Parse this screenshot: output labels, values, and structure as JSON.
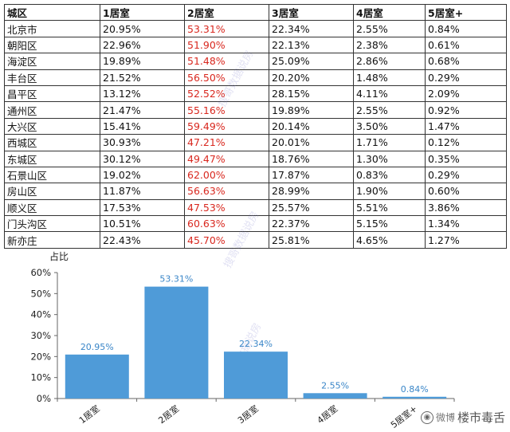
{
  "table": {
    "headers": [
      "城区",
      "1居室",
      "2居室",
      "3居室",
      "4居室",
      "5居室+"
    ],
    "rows": [
      [
        "北京市",
        "20.95%",
        "53.31%",
        "22.34%",
        "2.55%",
        "0.84%"
      ],
      [
        "朝阳区",
        "22.96%",
        "51.90%",
        "22.13%",
        "2.38%",
        "0.61%"
      ],
      [
        "海淀区",
        "19.89%",
        "51.48%",
        "25.09%",
        "2.86%",
        "0.68%"
      ],
      [
        "丰台区",
        "21.52%",
        "56.50%",
        "20.20%",
        "1.48%",
        "0.29%"
      ],
      [
        "昌平区",
        "13.12%",
        "52.52%",
        "28.15%",
        "4.11%",
        "2.09%"
      ],
      [
        "通州区",
        "21.47%",
        "55.16%",
        "19.89%",
        "2.55%",
        "0.92%"
      ],
      [
        "大兴区",
        "15.41%",
        "59.49%",
        "20.14%",
        "3.50%",
        "1.47%"
      ],
      [
        "西城区",
        "30.93%",
        "47.21%",
        "20.01%",
        "1.71%",
        "0.12%"
      ],
      [
        "东城区",
        "30.12%",
        "49.47%",
        "18.76%",
        "1.30%",
        "0.35%"
      ],
      [
        "石景山区",
        "19.02%",
        "62.00%",
        "17.87%",
        "0.83%",
        "0.29%"
      ],
      [
        "房山区",
        "11.87%",
        "56.63%",
        "28.99%",
        "1.90%",
        "0.60%"
      ],
      [
        "顺义区",
        "17.53%",
        "47.53%",
        "25.57%",
        "5.51%",
        "3.86%"
      ],
      [
        "门头沟区",
        "10.51%",
        "60.63%",
        "22.37%",
        "5.15%",
        "1.34%"
      ],
      [
        "新亦庄",
        "22.43%",
        "45.70%",
        "25.81%",
        "4.65%",
        "1.27%"
      ]
    ],
    "highlight_color": "#d9281f"
  },
  "chart_data": {
    "type": "bar",
    "ylabel": "占比",
    "categories": [
      "1居室",
      "2居室",
      "3居室",
      "4居室",
      "5居室+"
    ],
    "values": [
      20.95,
      53.31,
      22.34,
      2.55,
      0.84
    ],
    "data_labels": [
      "20.95%",
      "53.31%",
      "22.34%",
      "2.55%",
      "0.84%"
    ],
    "ylim": [
      0,
      60
    ],
    "yticks": [
      "0%",
      "10%",
      "20%",
      "30%",
      "40%",
      "50%",
      "60%"
    ],
    "grid": false,
    "bar_color": "#4f9bd8",
    "label_color": "#3a86c8"
  },
  "watermark": {
    "text": "搜哥数据说房"
  },
  "logo": {
    "platform": "微博",
    "name": "楼市毒舌"
  }
}
